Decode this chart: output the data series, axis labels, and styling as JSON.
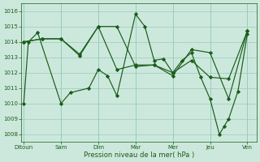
{
  "xlabel": "Pression niveau de la mer( hPa )",
  "bg_color": "#cce8dc",
  "grid_color": "#99ccb8",
  "line_color": "#1a5c1a",
  "ylim": [
    1007.5,
    1016.5
  ],
  "yticks": [
    1008,
    1009,
    1010,
    1011,
    1012,
    1013,
    1014,
    1015,
    1016
  ],
  "day_labels": [
    "Ditoun",
    "Sam",
    "Dim",
    "Mar",
    "Mer",
    "Jeu",
    "Ven"
  ],
  "day_positions": [
    0,
    8,
    16,
    24,
    32,
    40,
    48
  ],
  "xlim": [
    -0.5,
    50
  ],
  "line1_x": [
    0,
    1,
    3,
    8,
    10,
    14,
    16,
    18,
    20,
    24,
    26,
    28,
    30,
    32,
    34,
    36,
    38,
    40,
    42,
    43,
    44,
    46,
    48
  ],
  "line1_y": [
    1010.0,
    1014.0,
    1014.6,
    1010.0,
    1010.7,
    1011.0,
    1012.2,
    1011.8,
    1010.5,
    1015.8,
    1015.0,
    1012.8,
    1012.9,
    1012.0,
    1012.8,
    1013.3,
    1011.7,
    1010.3,
    1008.0,
    1008.5,
    1009.0,
    1010.8,
    1014.5
  ],
  "line2_x": [
    0,
    4,
    8,
    12,
    16,
    20,
    24,
    28,
    32,
    36,
    40,
    44,
    48
  ],
  "line2_y": [
    1014.0,
    1014.2,
    1014.2,
    1013.2,
    1015.0,
    1015.0,
    1012.4,
    1012.5,
    1011.8,
    1013.5,
    1013.3,
    1010.3,
    1014.7
  ],
  "line3_x": [
    0,
    4,
    8,
    12,
    16,
    20,
    24,
    28,
    32,
    36,
    40,
    44,
    48
  ],
  "line3_y": [
    1014.0,
    1014.2,
    1014.2,
    1013.1,
    1015.0,
    1012.2,
    1012.5,
    1012.5,
    1012.0,
    1012.8,
    1011.7,
    1011.6,
    1014.7
  ]
}
